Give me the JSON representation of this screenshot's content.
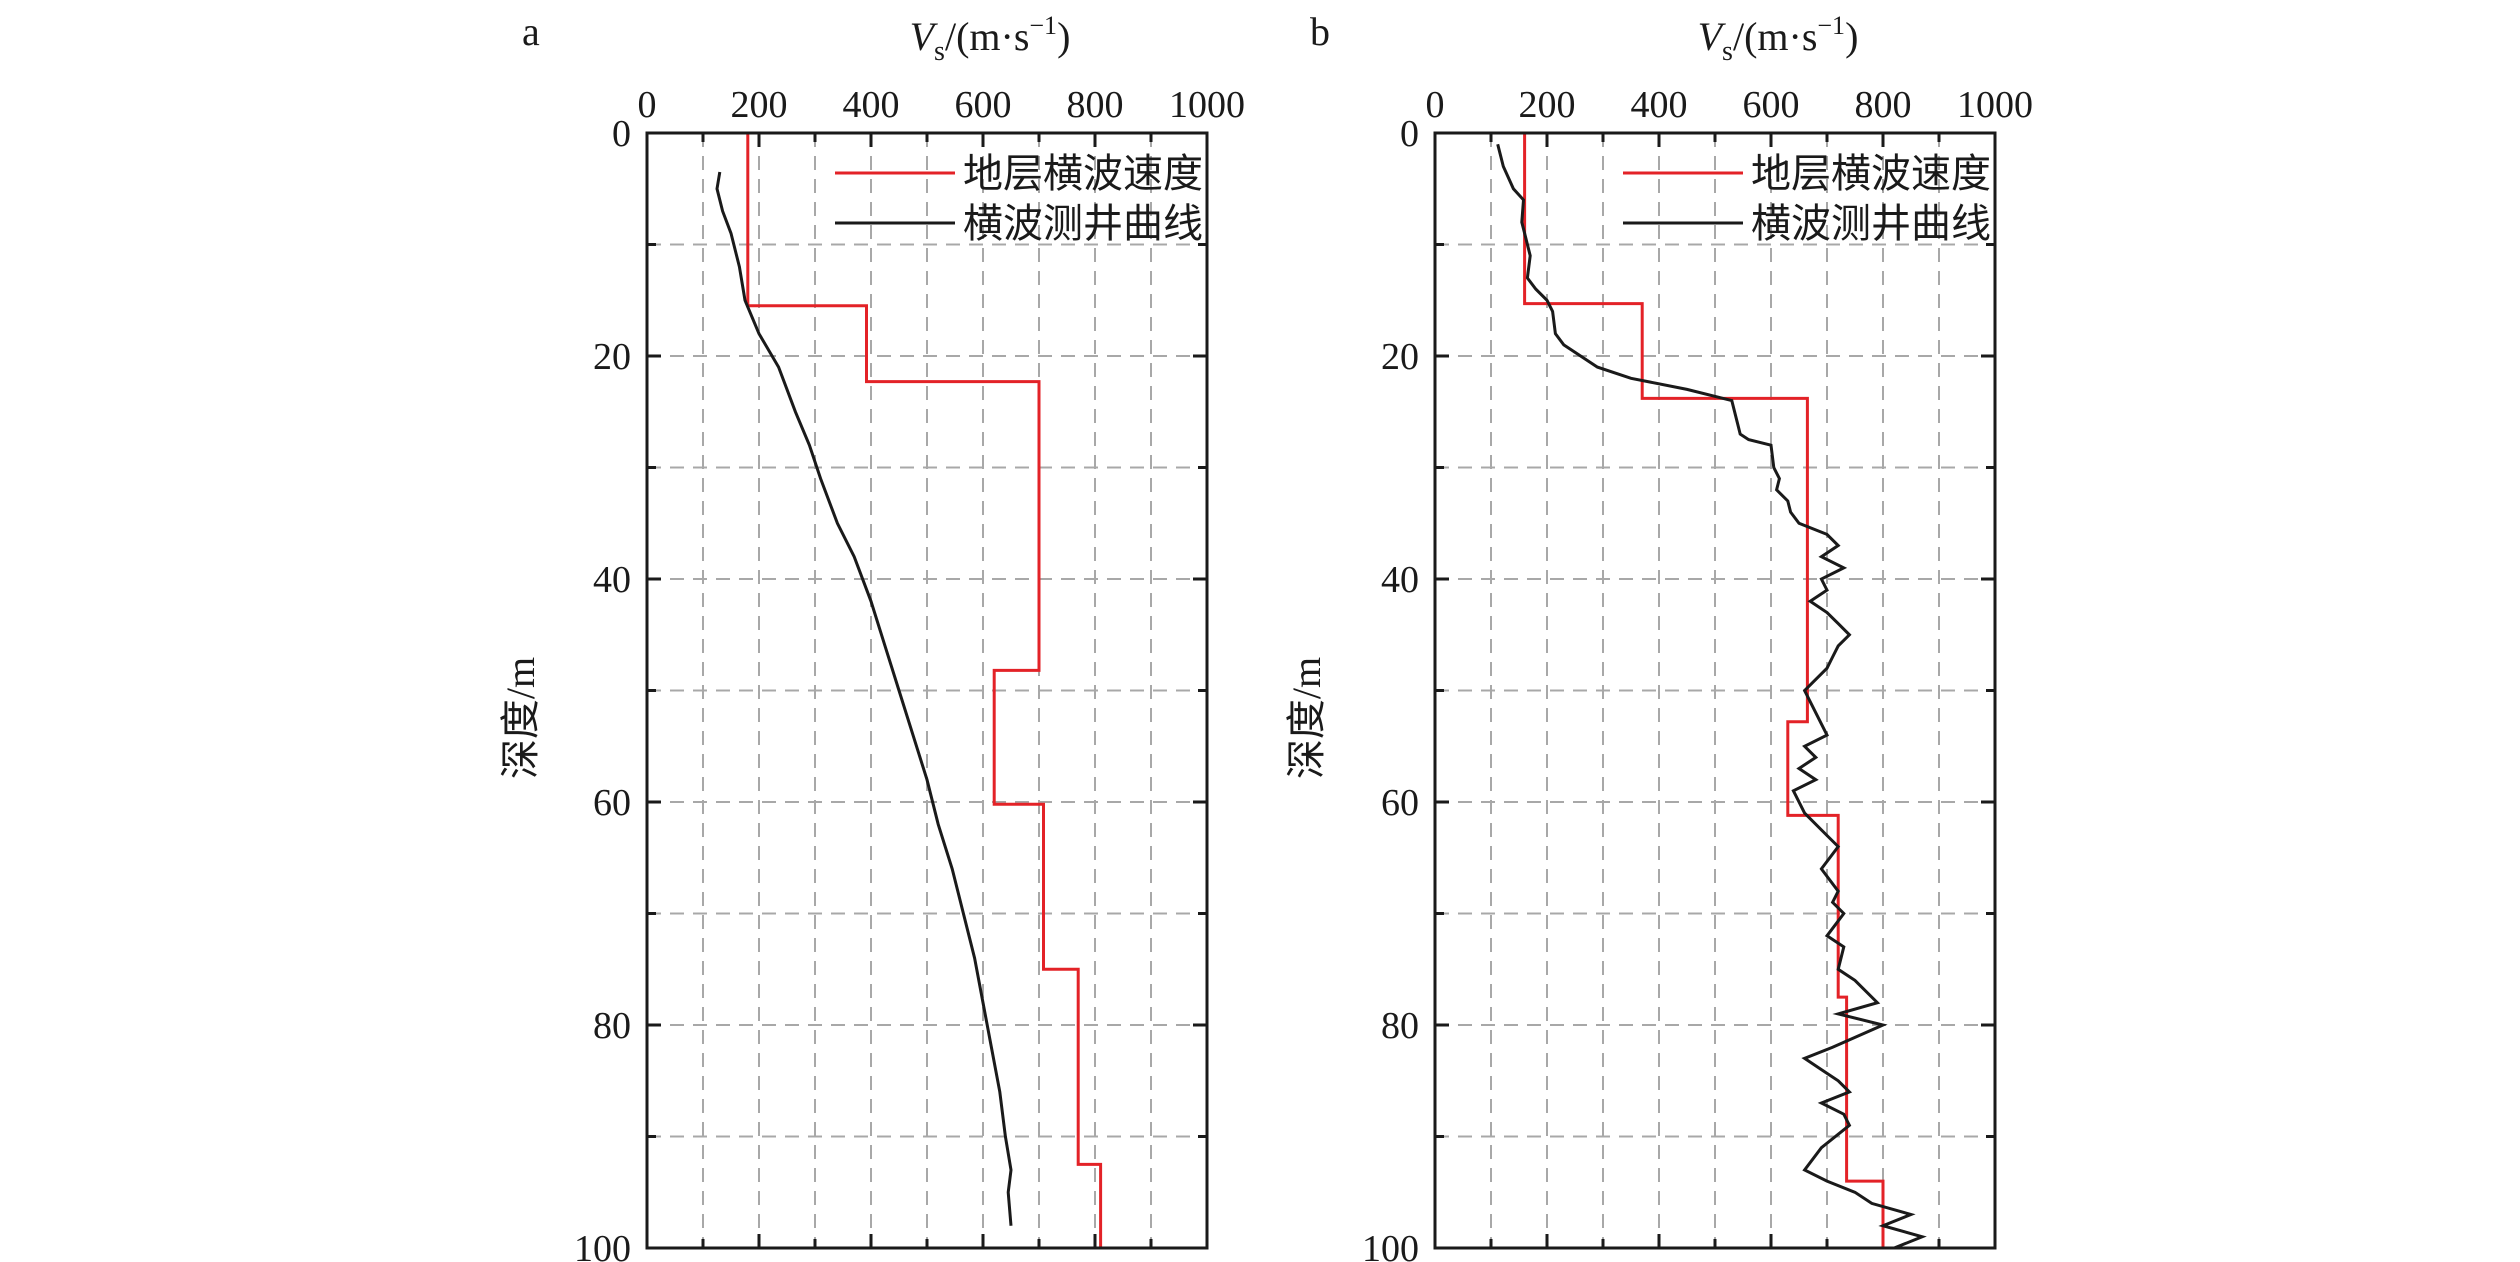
{
  "chart_data": [
    {
      "panel_label": "a",
      "type": "line",
      "x_label_main": "V",
      "x_label_sub": "s",
      "x_label_unit_open": "/(m·s",
      "x_label_unit_sup": "−1",
      "x_label_unit_close": ")",
      "ylabel": "深度/m",
      "x_ticks": [
        "0",
        "200",
        "400",
        "600",
        "800",
        "1000"
      ],
      "y_ticks": [
        "0",
        "20",
        "40",
        "60",
        "80",
        "100"
      ],
      "xlim": [
        0,
        1000
      ],
      "ylim": [
        0,
        100
      ],
      "y_inverted": true,
      "x_axis_position": "top",
      "grid": true,
      "legend_position": "top-right",
      "series": [
        {
          "name": "地层横波速度",
          "color": "#e32227",
          "step": true,
          "points": [
            [
              180,
              0
            ],
            [
              180,
              15.5
            ],
            [
              392,
              15.5
            ],
            [
              392,
              22.3
            ],
            [
              700,
              22.3
            ],
            [
              700,
              48.2
            ],
            [
              620,
              48.2
            ],
            [
              620,
              60.2
            ],
            [
              708,
              60.2
            ],
            [
              708,
              75
            ],
            [
              770,
              75
            ],
            [
              770,
              92.5
            ],
            [
              810,
              92.5
            ],
            [
              810,
              100
            ]
          ]
        },
        {
          "name": "横波测井曲线",
          "color": "#1a1a1a",
          "step": false,
          "points": [
            [
              130,
              3.5
            ],
            [
              125,
              5
            ],
            [
              135,
              7
            ],
            [
              150,
              9
            ],
            [
              165,
              12
            ],
            [
              175,
              15
            ],
            [
              200,
              18
            ],
            [
              235,
              21
            ],
            [
              265,
              25
            ],
            [
              290,
              28
            ],
            [
              310,
              31
            ],
            [
              340,
              35
            ],
            [
              370,
              38
            ],
            [
              400,
              42
            ],
            [
              425,
              46
            ],
            [
              450,
              50
            ],
            [
              475,
              54
            ],
            [
              500,
              58
            ],
            [
              520,
              62
            ],
            [
              545,
              66
            ],
            [
              565,
              70
            ],
            [
              585,
              74
            ],
            [
              600,
              78
            ],
            [
              615,
              82
            ],
            [
              630,
              86
            ],
            [
              640,
              90
            ],
            [
              650,
              93
            ],
            [
              645,
              95
            ],
            [
              650,
              98
            ]
          ]
        }
      ]
    },
    {
      "panel_label": "b",
      "type": "line",
      "x_label_main": "V",
      "x_label_sub": "s",
      "x_label_unit_open": "/(m·s",
      "x_label_unit_sup": "−1",
      "x_label_unit_close": ")",
      "ylabel": "深度/m",
      "x_ticks": [
        "0",
        "200",
        "400",
        "600",
        "800",
        "1000"
      ],
      "y_ticks": [
        "0",
        "20",
        "40",
        "60",
        "80",
        "100"
      ],
      "xlim": [
        0,
        1000
      ],
      "ylim": [
        0,
        100
      ],
      "y_inverted": true,
      "x_axis_position": "top",
      "grid": true,
      "legend_position": "top-right",
      "series": [
        {
          "name": "地层横波速度",
          "color": "#e32227",
          "step": true,
          "points": [
            [
              160,
              0
            ],
            [
              160,
              15.3
            ],
            [
              370,
              15.3
            ],
            [
              370,
              23.8
            ],
            [
              665,
              23.8
            ],
            [
              665,
              52.8
            ],
            [
              630,
              52.8
            ],
            [
              630,
              61.2
            ],
            [
              720,
              61.2
            ],
            [
              720,
              77.5
            ],
            [
              735,
              77.5
            ],
            [
              735,
              94
            ],
            [
              800,
              94
            ],
            [
              800,
              100
            ]
          ]
        },
        {
          "name": "横波测井曲线",
          "color": "#1a1a1a",
          "step": false,
          "points": [
            [
              112,
              1
            ],
            [
              122,
              3
            ],
            [
              140,
              5
            ],
            [
              158,
              6
            ],
            [
              155,
              8
            ],
            [
              160,
              9
            ],
            [
              170,
              11
            ],
            [
              165,
              13
            ],
            [
              180,
              14
            ],
            [
              200,
              15
            ],
            [
              210,
              16
            ],
            [
              215,
              18
            ],
            [
              230,
              19
            ],
            [
              260,
              20
            ],
            [
              290,
              21
            ],
            [
              350,
              22
            ],
            [
              450,
              23
            ],
            [
              530,
              24
            ],
            [
              540,
              26
            ],
            [
              545,
              27
            ],
            [
              560,
              27.5
            ],
            [
              600,
              28
            ],
            [
              605,
              30
            ],
            [
              615,
              31
            ],
            [
              610,
              32
            ],
            [
              630,
              33
            ],
            [
              635,
              34
            ],
            [
              650,
              35
            ],
            [
              700,
              36
            ],
            [
              720,
              37
            ],
            [
              690,
              38
            ],
            [
              730,
              39
            ],
            [
              690,
              40
            ],
            [
              700,
              41
            ],
            [
              670,
              42
            ],
            [
              700,
              43
            ],
            [
              720,
              44
            ],
            [
              740,
              45
            ],
            [
              720,
              46
            ],
            [
              710,
              47
            ],
            [
              700,
              48
            ],
            [
              660,
              50
            ],
            [
              680,
              52
            ],
            [
              700,
              54
            ],
            [
              660,
              55
            ],
            [
              680,
              56
            ],
            [
              650,
              57
            ],
            [
              680,
              58
            ],
            [
              640,
              59
            ],
            [
              660,
              61
            ],
            [
              700,
              63
            ],
            [
              720,
              64
            ],
            [
              690,
              66
            ],
            [
              720,
              68
            ],
            [
              710,
              69
            ],
            [
              730,
              70
            ],
            [
              700,
              72
            ],
            [
              730,
              73
            ],
            [
              720,
              75
            ],
            [
              750,
              76
            ],
            [
              790,
              78
            ],
            [
              720,
              79
            ],
            [
              800,
              80
            ],
            [
              710,
              82
            ],
            [
              660,
              83
            ],
            [
              690,
              84
            ],
            [
              720,
              85
            ],
            [
              740,
              86
            ],
            [
              690,
              87
            ],
            [
              730,
              88
            ],
            [
              740,
              89
            ],
            [
              690,
              91
            ],
            [
              660,
              93
            ],
            [
              700,
              94
            ],
            [
              750,
              95
            ],
            [
              780,
              96
            ],
            [
              850,
              97
            ],
            [
              800,
              98
            ],
            [
              870,
              99
            ],
            [
              820,
              100
            ]
          ]
        }
      ]
    }
  ]
}
